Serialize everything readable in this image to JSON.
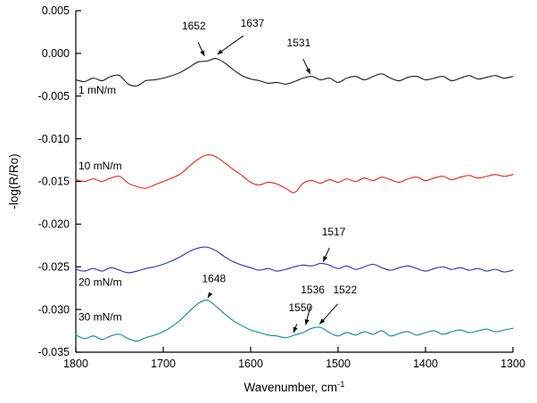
{
  "figure": {
    "background": "#ffffff"
  },
  "chart_data": {
    "type": "line",
    "title": "",
    "xlabel": "Wavenumber, cm",
    "xlabel_superscript": "-1",
    "ylabel": "-log(R/Ro)",
    "x_range": [
      1800,
      1300
    ],
    "y_range": [
      0.005,
      -0.035
    ],
    "x_axis_reversed": true,
    "grid": "off",
    "legend_position": "inline-labels",
    "axis_color": "#000000",
    "x_tick_values": [
      1800,
      1700,
      1600,
      1500,
      1400,
      1300
    ],
    "x_tick_labels": [
      "1800",
      "1700",
      "1600",
      "1500",
      "1400",
      "1300"
    ],
    "y_tick_values": [
      0.005,
      0,
      -0.005,
      -0.01,
      -0.015,
      -0.02,
      -0.025,
      -0.03,
      -0.035
    ],
    "y_tick_labels": [
      "0.005",
      "0.000",
      "-0.005",
      "-0.010",
      "-0.015",
      "-0.020",
      "-0.025",
      "-0.030",
      "-0.035"
    ],
    "x": [
      1800,
      1790,
      1780,
      1770,
      1760,
      1750,
      1740,
      1730,
      1720,
      1710,
      1700,
      1690,
      1680,
      1670,
      1660,
      1650,
      1640,
      1630,
      1620,
      1610,
      1600,
      1590,
      1580,
      1570,
      1560,
      1550,
      1540,
      1530,
      1520,
      1510,
      1500,
      1490,
      1480,
      1470,
      1460,
      1450,
      1440,
      1430,
      1420,
      1410,
      1400,
      1390,
      1380,
      1370,
      1360,
      1350,
      1340,
      1330,
      1320,
      1310,
      1300
    ],
    "series": [
      {
        "name": "1 mN/m",
        "color": "#1a1a1a",
        "label": {
          "text": "1 mN/m",
          "x": 1797,
          "y": -0.0047
        },
        "values": [
          -0.0031,
          -0.0033,
          -0.0029,
          -0.0032,
          -0.0027,
          -0.0026,
          -0.0036,
          -0.0038,
          -0.0032,
          -0.0031,
          -0.0029,
          -0.0026,
          -0.0022,
          -0.0016,
          -0.001,
          -0.0009,
          -0.0006,
          -0.0011,
          -0.0019,
          -0.0026,
          -0.003,
          -0.0032,
          -0.0035,
          -0.0034,
          -0.0036,
          -0.0033,
          -0.0029,
          -0.0027,
          -0.0031,
          -0.0029,
          -0.0034,
          -0.0029,
          -0.0027,
          -0.0031,
          -0.0027,
          -0.0024,
          -0.0029,
          -0.0032,
          -0.0028,
          -0.0027,
          -0.0031,
          -0.0029,
          -0.0027,
          -0.0032,
          -0.0029,
          -0.0026,
          -0.003,
          -0.0028,
          -0.0026,
          -0.0029,
          -0.0027
        ]
      },
      {
        "name": "10 mN/m",
        "color": "#e2251b",
        "label": {
          "text": "10 mN/m",
          "x": 1797,
          "y": -0.0136
        },
        "values": [
          -0.0148,
          -0.015,
          -0.0147,
          -0.015,
          -0.0146,
          -0.0144,
          -0.0152,
          -0.0156,
          -0.0158,
          -0.0154,
          -0.015,
          -0.0146,
          -0.0141,
          -0.0132,
          -0.0124,
          -0.0119,
          -0.0121,
          -0.0128,
          -0.0136,
          -0.0143,
          -0.0151,
          -0.0154,
          -0.0151,
          -0.0153,
          -0.0158,
          -0.0163,
          -0.0152,
          -0.0149,
          -0.0152,
          -0.0148,
          -0.0151,
          -0.0147,
          -0.015,
          -0.0146,
          -0.0149,
          -0.0145,
          -0.0148,
          -0.0151,
          -0.0147,
          -0.0145,
          -0.0149,
          -0.0146,
          -0.0144,
          -0.0148,
          -0.0145,
          -0.0143,
          -0.0146,
          -0.0144,
          -0.0142,
          -0.0144,
          -0.0142
        ]
      },
      {
        "name": "20 mN/m",
        "color": "#2b35af",
        "label": {
          "text": "20 mN/m",
          "x": 1797,
          "y": -0.0272
        },
        "values": [
          -0.0253,
          -0.0255,
          -0.0252,
          -0.0255,
          -0.0251,
          -0.0254,
          -0.0257,
          -0.0255,
          -0.0252,
          -0.025,
          -0.0247,
          -0.0243,
          -0.0238,
          -0.0232,
          -0.0228,
          -0.0227,
          -0.0231,
          -0.0238,
          -0.0244,
          -0.0248,
          -0.0251,
          -0.0254,
          -0.0252,
          -0.0255,
          -0.0253,
          -0.025,
          -0.0248,
          -0.0249,
          -0.0246,
          -0.0248,
          -0.0252,
          -0.0249,
          -0.0253,
          -0.025,
          -0.0247,
          -0.0251,
          -0.0254,
          -0.0251,
          -0.0249,
          -0.0252,
          -0.0255,
          -0.0252,
          -0.025,
          -0.0253,
          -0.0251,
          -0.0254,
          -0.0252,
          -0.0255,
          -0.0253,
          -0.0256,
          -0.0254
        ]
      },
      {
        "name": "30 mN/m",
        "color": "#0f8c82",
        "label": {
          "text": "30 mN/m",
          "x": 1797,
          "y": -0.0313
        },
        "values": [
          -0.033,
          -0.0334,
          -0.0331,
          -0.0335,
          -0.0331,
          -0.0329,
          -0.0334,
          -0.0337,
          -0.0333,
          -0.033,
          -0.0326,
          -0.032,
          -0.0312,
          -0.0302,
          -0.0293,
          -0.0289,
          -0.0296,
          -0.0305,
          -0.0313,
          -0.0319,
          -0.0324,
          -0.0327,
          -0.033,
          -0.0331,
          -0.0333,
          -0.033,
          -0.0327,
          -0.0322,
          -0.0321,
          -0.0327,
          -0.0331,
          -0.0327,
          -0.033,
          -0.0326,
          -0.0329,
          -0.0325,
          -0.0331,
          -0.0328,
          -0.0326,
          -0.033,
          -0.0327,
          -0.0325,
          -0.0329,
          -0.0326,
          -0.0324,
          -0.0327,
          -0.0325,
          -0.0323,
          -0.0326,
          -0.0324,
          -0.0322
        ]
      }
    ],
    "annotations": [
      {
        "text": "1652",
        "text_x": 1665,
        "text_y": 0.0028,
        "tip_x": 1653,
        "tip_y": -0.0003
      },
      {
        "text": "1637",
        "text_x": 1598,
        "text_y": 0.0031,
        "tip_x": 1638,
        "tip_y": -0.0001
      },
      {
        "text": "1531",
        "text_x": 1545,
        "text_y": 0.0008,
        "tip_x": 1532,
        "tip_y": -0.0024
      },
      {
        "text": "1517",
        "text_x": 1505,
        "text_y": -0.0213,
        "tip_x": 1517,
        "tip_y": -0.0244
      },
      {
        "text": "1648",
        "text_x": 1642,
        "text_y": -0.0268,
        "tip_x": 1649,
        "tip_y": -0.0286
      },
      {
        "text": "1550",
        "text_x": 1543,
        "text_y": -0.0302,
        "tip_x": 1551,
        "tip_y": -0.0327
      },
      {
        "text": "1536",
        "text_x": 1529,
        "text_y": -0.0281,
        "tip_x": 1537,
        "tip_y": -0.0318
      },
      {
        "text": "1522",
        "text_x": 1492,
        "text_y": -0.0281,
        "tip_x": 1521,
        "tip_y": -0.0317
      }
    ]
  }
}
